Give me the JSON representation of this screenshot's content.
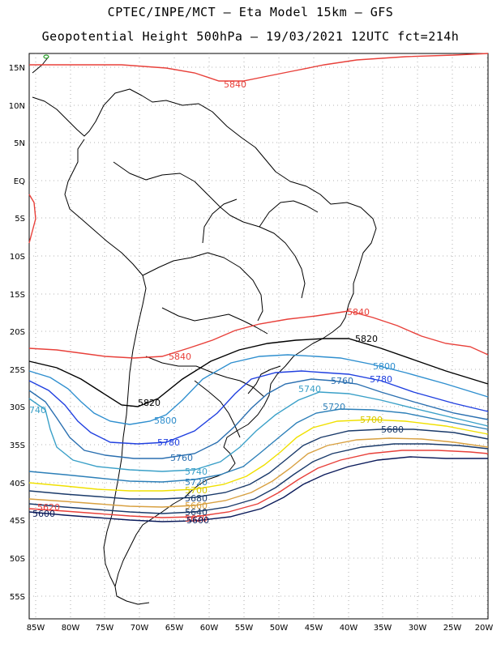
{
  "header": {
    "line1": "CPTEC/INPE/MCT –  Eta Model 15km – GFS",
    "line2": "Geopotential Height 500hPa – 19/03/2021 12UTC fct=214h"
  },
  "map": {
    "lat_labels": [
      "15N",
      "10N",
      "5N",
      "EQ",
      "5S",
      "10S",
      "15S",
      "20S",
      "25S",
      "30S",
      "35S",
      "40S",
      "45S",
      "50S",
      "55S"
    ],
    "lon_labels": [
      "85W",
      "80W",
      "75W",
      "70W",
      "65W",
      "60W",
      "55W",
      "50W",
      "45W",
      "40W",
      "35W",
      "30W",
      "25W",
      "20W"
    ],
    "contour_labels": [
      {
        "text": "5840",
        "color": "#e8403a"
      },
      {
        "text": "5840",
        "color": "#e8403a"
      },
      {
        "text": "5840",
        "color": "#e8403a"
      },
      {
        "text": "5820",
        "color": "#000000"
      },
      {
        "text": "5820",
        "color": "#000000"
      },
      {
        "text": "5800",
        "color": "#2f8fcf"
      },
      {
        "text": "5800",
        "color": "#2f8fcf"
      },
      {
        "text": "5780",
        "color": "#2040e0"
      },
      {
        "text": "5780",
        "color": "#2040e0"
      },
      {
        "text": "5760",
        "color": "#2a6fb0"
      },
      {
        "text": "5760",
        "color": "#2a6fb0"
      },
      {
        "text": "5740",
        "color": "#3aa0c8"
      },
      {
        "text": "5740",
        "color": "#3aa0c8"
      },
      {
        "text": "740",
        "color": "#3aa0c8"
      },
      {
        "text": "5720",
        "color": "#2c7fb8"
      },
      {
        "text": "5720",
        "color": "#2c7fb8"
      },
      {
        "text": "5700",
        "color": "#d8c800"
      },
      {
        "text": "5700",
        "color": "#d8c800"
      },
      {
        "text": "5680",
        "color": "#1a3a6a"
      },
      {
        "text": "5680",
        "color": "#1a3a6a"
      },
      {
        "text": "5660",
        "color": "#d8a040"
      },
      {
        "text": "5640",
        "color": "#1a3a6a"
      },
      {
        "text": "5620",
        "color": "#e8403a"
      },
      {
        "text": "5620",
        "color": "#e8403a"
      },
      {
        "text": "5600",
        "color": "#0a1a5a"
      },
      {
        "text": "5600",
        "color": "#0a1a5a"
      }
    ]
  },
  "colors": {
    "c5840": "#e8403a",
    "c5820": "#000000",
    "c5800": "#2f8fcf",
    "c5780": "#2040e0",
    "c5760": "#2a6fb0",
    "c5740": "#3aa0c8",
    "c5720": "#2c7fb8",
    "c5700": "#f0e000",
    "c5680": "#1a3a6a",
    "c5660": "#d8a040",
    "c5640": "#1a3a6a",
    "c5620": "#e8403a",
    "c5600": "#0a1a5a"
  }
}
